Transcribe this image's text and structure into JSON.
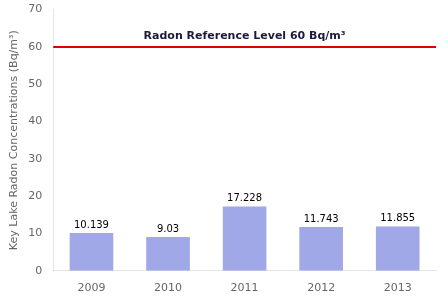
{
  "chart_data": {
    "type": "bar",
    "ylabel": "Key Lake Radon Concentrations (Bq/m³)",
    "categories": [
      "2009",
      "2010",
      "2011",
      "2012",
      "2013"
    ],
    "values": [
      10.139,
      9.03,
      17.228,
      11.743,
      11.855
    ],
    "color": "#a0a8e8",
    "data_labels": true,
    "reference_line": {
      "value": 60,
      "label": "Radon Reference Level 60 Bq/m³",
      "color": "#dd0000"
    },
    "ylim": [
      0,
      70
    ],
    "yticks": [
      0,
      10,
      20,
      30,
      40,
      50,
      60,
      70
    ],
    "grid": false
  }
}
